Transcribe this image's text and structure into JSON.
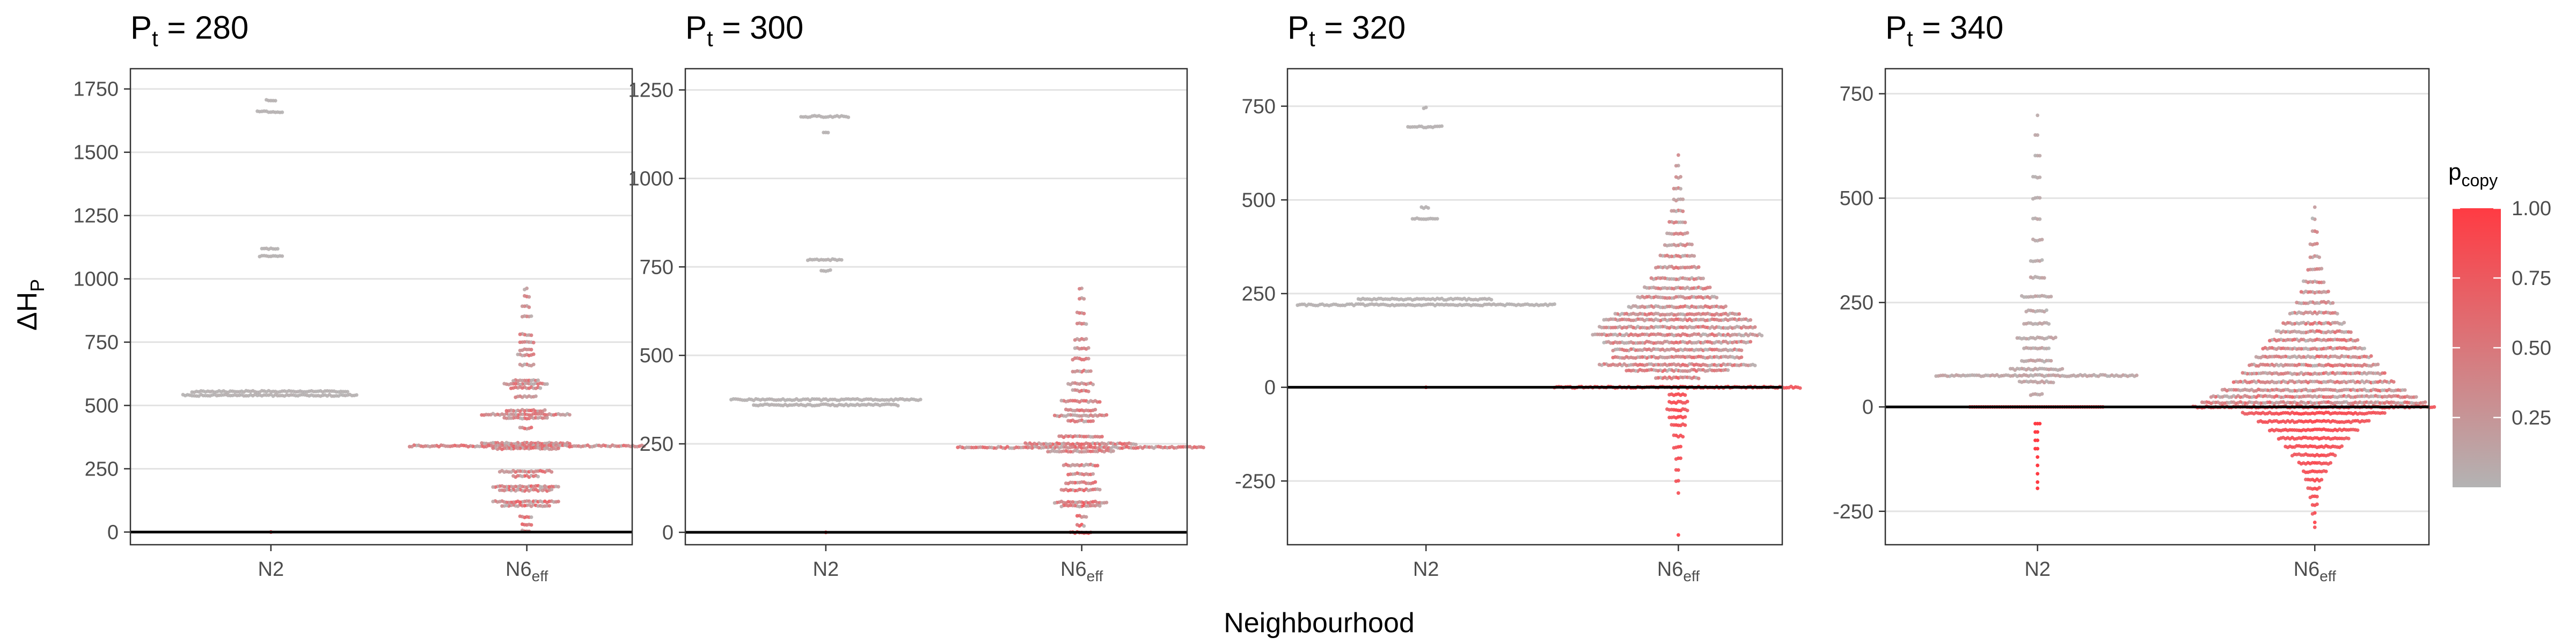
{
  "chart_data": {
    "type": "scatter",
    "style": "beeswarm",
    "xlabel": "Neighbourhood",
    "ylabel": {
      "main": "ΔH",
      "sub": "P"
    },
    "x_categories": [
      {
        "main": "N2",
        "sub": ""
      },
      {
        "main": "N6",
        "sub": "eff"
      }
    ],
    "legend": {
      "title": {
        "main": "p",
        "sub": "copy"
      },
      "placement": "right",
      "range": [
        0,
        1
      ],
      "ticks": [
        "1.00",
        "0.75",
        "0.50",
        "0.25"
      ],
      "tick_values": [
        1.0,
        0.75,
        0.5,
        0.25
      ],
      "color_low": "#b3b3b3",
      "color_high": "#ff3b43"
    },
    "grid": true,
    "reference_line": 0,
    "panels": [
      {
        "title": {
          "main": "P",
          "sub": "t",
          "rest": " = 280"
        },
        "ylim": [
          -50,
          1830
        ],
        "yticks": [
          0,
          250,
          500,
          750,
          1000,
          1250,
          1500,
          1750
        ],
        "ytick_labels": [
          "0",
          "250",
          "500",
          "750",
          "1000",
          "1250",
          "1500",
          "1750"
        ],
        "groups": [
          {
            "category": "N2",
            "pcopy_low": 0.02,
            "pcopy_high": 0.05,
            "levels": [
              {
                "y": 1705,
                "n": 5
              },
              {
                "y": 1660,
                "n": 12
              },
              {
                "y": 1120,
                "n": 8
              },
              {
                "y": 1090,
                "n": 11
              },
              {
                "y": 555,
                "n": 70
              },
              {
                "y": 540,
                "n": 78
              }
            ],
            "red_points": [
              {
                "y": 0,
                "n": 1
              }
            ]
          },
          {
            "category": "N6eff",
            "pcopy_low": 0.05,
            "pcopy_high": 0.9,
            "levels": [
              {
                "y": 960,
                "n": 2
              },
              {
                "y": 930,
                "n": 3
              },
              {
                "y": 890,
                "n": 4
              },
              {
                "y": 850,
                "n": 5
              },
              {
                "y": 780,
                "n": 6
              },
              {
                "y": 750,
                "n": 7
              },
              {
                "y": 720,
                "n": 6
              },
              {
                "y": 700,
                "n": 8
              },
              {
                "y": 660,
                "n": 7
              },
              {
                "y": 600,
                "n": 12
              },
              {
                "y": 585,
                "n": 20
              },
              {
                "y": 570,
                "n": 14
              },
              {
                "y": 535,
                "n": 10
              },
              {
                "y": 480,
                "n": 18
              },
              {
                "y": 465,
                "n": 40
              },
              {
                "y": 450,
                "n": 20
              },
              {
                "y": 410,
                "n": 6
              },
              {
                "y": 350,
                "n": 40
              },
              {
                "y": 340,
                "n": 105
              },
              {
                "y": 330,
                "n": 30
              },
              {
                "y": 240,
                "n": 24
              },
              {
                "y": 220,
                "n": 12
              },
              {
                "y": 180,
                "n": 30
              },
              {
                "y": 165,
                "n": 24
              },
              {
                "y": 120,
                "n": 30
              },
              {
                "y": 105,
                "n": 22
              },
              {
                "y": 60,
                "n": 6
              },
              {
                "y": 30,
                "n": 5
              },
              {
                "y": 5,
                "n": 4
              }
            ],
            "red_points": []
          }
        ]
      },
      {
        "title": {
          "main": "P",
          "sub": "t",
          "rest": " = 300"
        },
        "ylim": [
          -35,
          1310
        ],
        "yticks": [
          0,
          250,
          500,
          750,
          1000,
          1250
        ],
        "ytick_labels": [
          "0",
          "250",
          "500",
          "750",
          "1000",
          "1250"
        ],
        "groups": [
          {
            "category": "N2",
            "pcopy_low": 0.02,
            "pcopy_high": 0.05,
            "levels": [
              {
                "y": 1175,
                "n": 22
              },
              {
                "y": 1130,
                "n": 3
              },
              {
                "y": 770,
                "n": 16
              },
              {
                "y": 740,
                "n": 5
              },
              {
                "y": 375,
                "n": 85
              },
              {
                "y": 360,
                "n": 65
              }
            ],
            "red_points": [
              {
                "y": 0,
                "n": 1
              }
            ]
          },
          {
            "category": "N6eff",
            "pcopy_low": 0.05,
            "pcopy_high": 0.9,
            "levels": [
              {
                "y": 690,
                "n": 2
              },
              {
                "y": 660,
                "n": 3
              },
              {
                "y": 620,
                "n": 4
              },
              {
                "y": 590,
                "n": 5
              },
              {
                "y": 545,
                "n": 6
              },
              {
                "y": 520,
                "n": 7
              },
              {
                "y": 490,
                "n": 8
              },
              {
                "y": 455,
                "n": 9
              },
              {
                "y": 420,
                "n": 12
              },
              {
                "y": 400,
                "n": 8
              },
              {
                "y": 370,
                "n": 18
              },
              {
                "y": 345,
                "n": 14
              },
              {
                "y": 330,
                "n": 24
              },
              {
                "y": 315,
                "n": 12
              },
              {
                "y": 270,
                "n": 20
              },
              {
                "y": 250,
                "n": 50
              },
              {
                "y": 240,
                "n": 110
              },
              {
                "y": 230,
                "n": 30
              },
              {
                "y": 190,
                "n": 16
              },
              {
                "y": 165,
                "n": 12
              },
              {
                "y": 140,
                "n": 14
              },
              {
                "y": 120,
                "n": 18
              },
              {
                "y": 85,
                "n": 24
              },
              {
                "y": 75,
                "n": 18
              },
              {
                "y": 45,
                "n": 5
              },
              {
                "y": 20,
                "n": 4
              },
              {
                "y": 0,
                "n": 10
              }
            ],
            "red_points": []
          }
        ]
      },
      {
        "title": {
          "main": "P",
          "sub": "t",
          "rest": " = 320"
        },
        "ylim": [
          -420,
          850
        ],
        "yticks": [
          -250,
          0,
          250,
          500,
          750
        ],
        "ytick_labels": [
          "-250",
          "0",
          "250",
          "500",
          "750"
        ],
        "groups": [
          {
            "category": "N2",
            "pcopy_low": 0.02,
            "pcopy_high": 0.05,
            "levels": [
              {
                "y": 745,
                "n": 2
              },
              {
                "y": 695,
                "n": 16
              },
              {
                "y": 480,
                "n": 4
              },
              {
                "y": 450,
                "n": 12
              },
              {
                "y": 235,
                "n": 60
              },
              {
                "y": 220,
                "n": 115
              }
            ],
            "red_points": [
              {
                "y": 0,
                "n": 1
              }
            ]
          },
          {
            "category": "N6eff",
            "pcopy_low": 0.0,
            "pcopy_high": 1.0,
            "levels": [
              {
                "y": 620,
                "n": 1
              },
              {
                "y": 590,
                "n": 2
              },
              {
                "y": 560,
                "n": 3
              },
              {
                "y": 530,
                "n": 4
              },
              {
                "y": 500,
                "n": 5
              },
              {
                "y": 470,
                "n": 6
              },
              {
                "y": 440,
                "n": 8
              },
              {
                "y": 410,
                "n": 10
              },
              {
                "y": 380,
                "n": 13
              },
              {
                "y": 350,
                "n": 16
              },
              {
                "y": 320,
                "n": 20
              },
              {
                "y": 290,
                "n": 24
              },
              {
                "y": 265,
                "n": 30
              },
              {
                "y": 240,
                "n": 36
              },
              {
                "y": 215,
                "n": 44
              },
              {
                "y": 195,
                "n": 56
              },
              {
                "y": 180,
                "n": 66
              },
              {
                "y": 160,
                "n": 70
              },
              {
                "y": 140,
                "n": 76
              },
              {
                "y": 120,
                "n": 66
              },
              {
                "y": 100,
                "n": 58
              },
              {
                "y": 80,
                "n": 58
              },
              {
                "y": 60,
                "n": 70
              },
              {
                "y": 45,
                "n": 46
              },
              {
                "y": 25,
                "n": 20
              },
              {
                "y": 0,
                "n": 110
              },
              {
                "y": -20,
                "n": 8
              },
              {
                "y": -40,
                "n": 9
              },
              {
                "y": -60,
                "n": 10
              },
              {
                "y": -80,
                "n": 8
              },
              {
                "y": -100,
                "n": 7
              },
              {
                "y": -130,
                "n": 5
              },
              {
                "y": -160,
                "n": 4
              },
              {
                "y": -190,
                "n": 3
              },
              {
                "y": -220,
                "n": 2
              },
              {
                "y": -250,
                "n": 2
              },
              {
                "y": -280,
                "n": 1
              },
              {
                "y": -395,
                "n": 1
              }
            ],
            "red_points": []
          }
        ]
      },
      {
        "title": {
          "main": "P",
          "sub": "t",
          "rest": " = 340"
        },
        "ylim": [
          -330,
          810
        ],
        "yticks": [
          -250,
          0,
          250,
          500,
          750
        ],
        "ytick_labels": [
          "-250",
          "0",
          "250",
          "500",
          "750"
        ],
        "groups": [
          {
            "category": "N2",
            "pcopy_low": 0.02,
            "pcopy_high": 0.3,
            "levels": [
              {
                "y": 700,
                "n": 1
              },
              {
                "y": 650,
                "n": 2
              },
              {
                "y": 600,
                "n": 3
              },
              {
                "y": 550,
                "n": 4
              },
              {
                "y": 500,
                "n": 4
              },
              {
                "y": 450,
                "n": 4
              },
              {
                "y": 400,
                "n": 5
              },
              {
                "y": 350,
                "n": 6
              },
              {
                "y": 310,
                "n": 7
              },
              {
                "y": 265,
                "n": 14
              },
              {
                "y": 230,
                "n": 10
              },
              {
                "y": 200,
                "n": 12
              },
              {
                "y": 165,
                "n": 18
              },
              {
                "y": 140,
                "n": 12
              },
              {
                "y": 110,
                "n": 14
              },
              {
                "y": 90,
                "n": 24
              },
              {
                "y": 75,
                "n": 90
              },
              {
                "y": 60,
                "n": 16
              },
              {
                "y": 30,
                "n": 6
              }
            ],
            "red_points": [
              {
                "y": 0,
                "n": 60
              },
              {
                "y": -40,
                "n": 3
              },
              {
                "y": -60,
                "n": 2
              },
              {
                "y": -80,
                "n": 2
              },
              {
                "y": -100,
                "n": 2
              },
              {
                "y": -120,
                "n": 1
              },
              {
                "y": -140,
                "n": 1
              },
              {
                "y": -160,
                "n": 1
              },
              {
                "y": -180,
                "n": 1
              },
              {
                "y": -195,
                "n": 1
              }
            ]
          },
          {
            "category": "N6eff",
            "pcopy_low": 0.0,
            "pcopy_high": 1.0,
            "levels": [
              {
                "y": 480,
                "n": 1
              },
              {
                "y": 450,
                "n": 2
              },
              {
                "y": 420,
                "n": 3
              },
              {
                "y": 390,
                "n": 4
              },
              {
                "y": 360,
                "n": 5
              },
              {
                "y": 330,
                "n": 7
              },
              {
                "y": 300,
                "n": 10
              },
              {
                "y": 275,
                "n": 13
              },
              {
                "y": 250,
                "n": 17
              },
              {
                "y": 225,
                "n": 22
              },
              {
                "y": 200,
                "n": 28
              },
              {
                "y": 180,
                "n": 34
              },
              {
                "y": 160,
                "n": 40
              },
              {
                "y": 140,
                "n": 46
              },
              {
                "y": 120,
                "n": 52
              },
              {
                "y": 100,
                "n": 58
              },
              {
                "y": 80,
                "n": 64
              },
              {
                "y": 60,
                "n": 72
              },
              {
                "y": 40,
                "n": 82
              },
              {
                "y": 25,
                "n": 92
              },
              {
                "y": 10,
                "n": 100
              },
              {
                "y": 0,
                "n": 108
              },
              {
                "y": -15,
                "n": 64
              },
              {
                "y": -35,
                "n": 50
              },
              {
                "y": -55,
                "n": 40
              },
              {
                "y": -75,
                "n": 32
              },
              {
                "y": -95,
                "n": 26
              },
              {
                "y": -115,
                "n": 20
              },
              {
                "y": -135,
                "n": 15
              },
              {
                "y": -155,
                "n": 11
              },
              {
                "y": -175,
                "n": 8
              },
              {
                "y": -195,
                "n": 6
              },
              {
                "y": -215,
                "n": 4
              },
              {
                "y": -235,
                "n": 3
              },
              {
                "y": -255,
                "n": 2
              },
              {
                "y": -275,
                "n": 1
              },
              {
                "y": -290,
                "n": 1
              }
            ],
            "red_points": []
          }
        ]
      }
    ]
  }
}
